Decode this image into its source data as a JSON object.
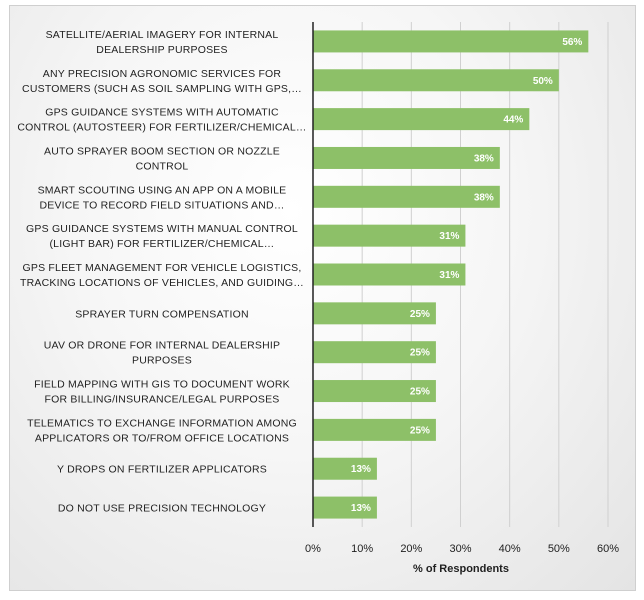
{
  "chart_data": {
    "type": "bar",
    "orientation": "horizontal",
    "categories": [
      [
        "SATELLITE/AERIAL IMAGERY FOR INTERNAL",
        "DEALERSHIP PURPOSES"
      ],
      [
        "ANY PRECISION AGRONOMIC SERVICES FOR",
        "CUSTOMERS (SUCH AS SOIL SAMPLING WITH GPS,…"
      ],
      [
        "GPS GUIDANCE SYSTEMS WITH AUTOMATIC",
        "CONTROL (AUTOSTEER) FOR FERTILIZER/CHEMICAL…"
      ],
      [
        "AUTO SPRAYER BOOM SECTION OR NOZZLE",
        "CONTROL"
      ],
      [
        "SMART SCOUTING USING AN APP ON A MOBILE",
        "DEVICE TO RECORD FIELD SITUATIONS AND…"
      ],
      [
        "GPS GUIDANCE SYSTEMS WITH MANUAL CONTROL",
        "(LIGHT BAR) FOR FERTILIZER/CHEMICAL…"
      ],
      [
        "GPS FLEET MANAGEMENT FOR VEHICLE LOGISTICS,",
        "TRACKING LOCATIONS OF VEHICLES, AND GUIDING…"
      ],
      [
        "SPRAYER TURN COMPENSATION"
      ],
      [
        "UAV OR DRONE FOR INTERNAL DEALERSHIP",
        "PURPOSES"
      ],
      [
        "FIELD MAPPING WITH GIS TO DOCUMENT WORK",
        "FOR BILLING/INSURANCE/LEGAL PURPOSES"
      ],
      [
        "TELEMATICS TO EXCHANGE INFORMATION AMONG",
        "APPLICATORS OR TO/FROM OFFICE LOCATIONS"
      ],
      [
        "Y DROPS ON FERTILIZER APPLICATORS"
      ],
      [
        "DO NOT USE PRECISION TECHNOLOGY"
      ]
    ],
    "values": [
      56,
      50,
      44,
      38,
      38,
      31,
      31,
      25,
      25,
      25,
      25,
      13,
      13
    ],
    "value_labels": [
      "56%",
      "50%",
      "44%",
      "38%",
      "38%",
      "31%",
      "31%",
      "25%",
      "25%",
      "25%",
      "25%",
      "13%",
      "13%"
    ],
    "xlim": [
      0,
      60
    ],
    "x_ticks": [
      0,
      10,
      20,
      30,
      40,
      50,
      60
    ],
    "x_tick_labels": [
      "0%",
      "10%",
      "20%",
      "30%",
      "40%",
      "50%",
      "60%"
    ],
    "xlabel": "% of Respondents",
    "grid": "vertical",
    "legend": "none",
    "bar_color": "#8dc068",
    "gridline_color": "#d0d0d0"
  }
}
